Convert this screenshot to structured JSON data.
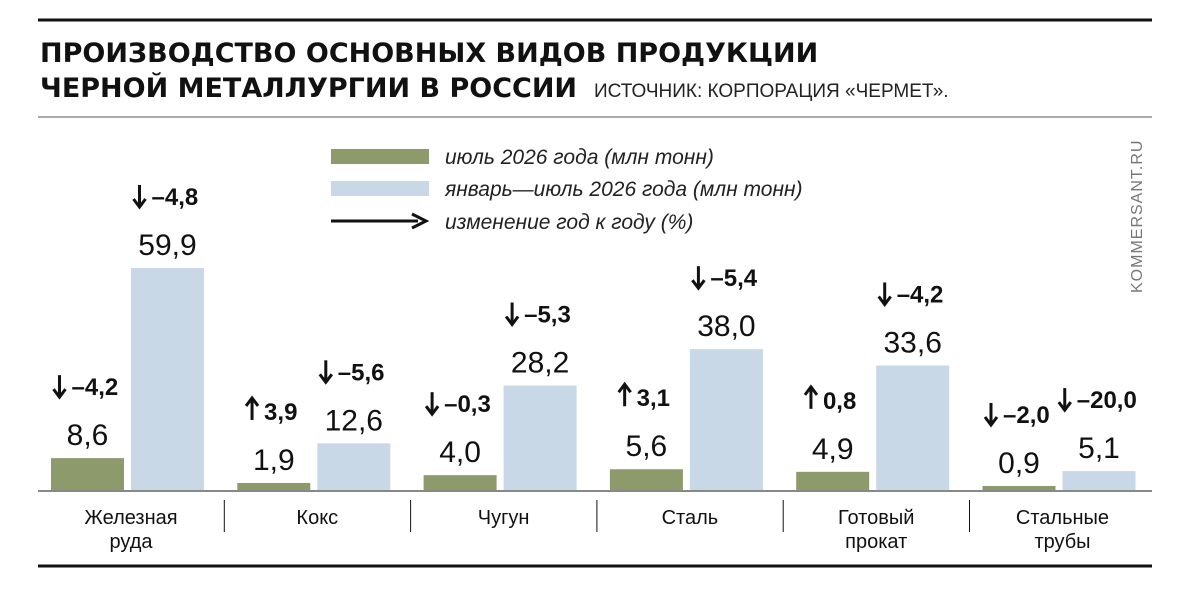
{
  "header": {
    "title_line1": "ПРОИЗВОДСТВО ОСНОВНЫХ ВИДОВ ПРОДУКЦИИ",
    "title_line2": "ЧЕРНОЙ МЕТАЛЛУРГИИ В РОССИИ",
    "source": "ИСТОЧНИК: КОРПОРАЦИЯ «ЧЕРМЕТ»."
  },
  "credit": "KOMMERSANT.RU",
  "legend": {
    "july": "июль 2026 года (млн тонн)",
    "jan_jul": "январь—июль 2026 года (млн тонн)",
    "change": "изменение год к году (%)",
    "change_icon": "arrow-right-icon"
  },
  "colors": {
    "july": "#8d9a6c",
    "jan_jul": "#c8d8e7",
    "text": "#111111",
    "rule": "#111111"
  },
  "chart_data": {
    "type": "bar",
    "categories": [
      [
        "Железная",
        "руда"
      ],
      [
        "Кокс"
      ],
      [
        "Чугун"
      ],
      [
        "Сталь"
      ],
      [
        "Готовый",
        "прокат"
      ],
      [
        "Стальные",
        "трубы"
      ]
    ],
    "series": [
      {
        "name": "июль 2026 года (млн тонн)",
        "values": [
          8.6,
          1.9,
          4.0,
          5.6,
          4.9,
          0.9
        ],
        "labels": [
          "8,6",
          "1,9",
          "4,0",
          "5,6",
          "4,9",
          "0,9"
        ],
        "change": [
          "–4,2",
          "3,9",
          "–0,3",
          "3,1",
          "0,8",
          "–2,0"
        ],
        "direction": [
          "down",
          "up",
          "down",
          "up",
          "up",
          "down"
        ]
      },
      {
        "name": "январь—июль 2026 года (млн тонн)",
        "values": [
          59.9,
          12.6,
          28.2,
          38.0,
          33.6,
          5.1
        ],
        "labels": [
          "59,9",
          "12,6",
          "28,2",
          "38,0",
          "33,6",
          "5,1"
        ],
        "change": [
          "–4,8",
          "–5,6",
          "–5,3",
          "–5,4",
          "–4,2",
          "–20,0"
        ],
        "direction": [
          "down",
          "down",
          "down",
          "down",
          "down",
          "down"
        ]
      }
    ],
    "ylim": [
      0,
      59.9
    ]
  }
}
